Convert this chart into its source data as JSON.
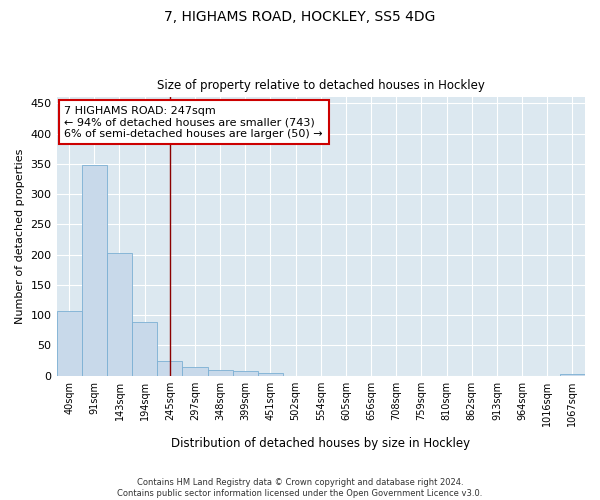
{
  "title_line1": "7, HIGHAMS ROAD, HOCKLEY, SS5 4DG",
  "title_line2": "Size of property relative to detached houses in Hockley",
  "xlabel": "Distribution of detached houses by size in Hockley",
  "ylabel": "Number of detached properties",
  "categories": [
    "40sqm",
    "91sqm",
    "143sqm",
    "194sqm",
    "245sqm",
    "297sqm",
    "348sqm",
    "399sqm",
    "451sqm",
    "502sqm",
    "554sqm",
    "605sqm",
    "656sqm",
    "708sqm",
    "759sqm",
    "810sqm",
    "862sqm",
    "913sqm",
    "964sqm",
    "1016sqm",
    "1067sqm"
  ],
  "values": [
    107,
    348,
    203,
    89,
    25,
    15,
    9,
    7,
    5,
    0,
    0,
    0,
    0,
    0,
    0,
    0,
    0,
    0,
    0,
    0,
    2
  ],
  "bar_color": "#c8d9ea",
  "bar_edge_color": "#7bafd4",
  "highlight_index": 4,
  "highlight_line_color": "#8b0000",
  "annotation_line1": "7 HIGHAMS ROAD: 247sqm",
  "annotation_line2": "← 94% of detached houses are smaller (743)",
  "annotation_line3": "6% of semi-detached houses are larger (50) →",
  "annotation_box_color": "#ffffff",
  "annotation_box_edge": "#cc0000",
  "ylim": [
    0,
    460
  ],
  "yticks": [
    0,
    50,
    100,
    150,
    200,
    250,
    300,
    350,
    400,
    450
  ],
  "background_color": "#dce8f0",
  "grid_color": "#ffffff",
  "fig_background": "#ffffff",
  "footer_line1": "Contains HM Land Registry data © Crown copyright and database right 2024.",
  "footer_line2": "Contains public sector information licensed under the Open Government Licence v3.0."
}
